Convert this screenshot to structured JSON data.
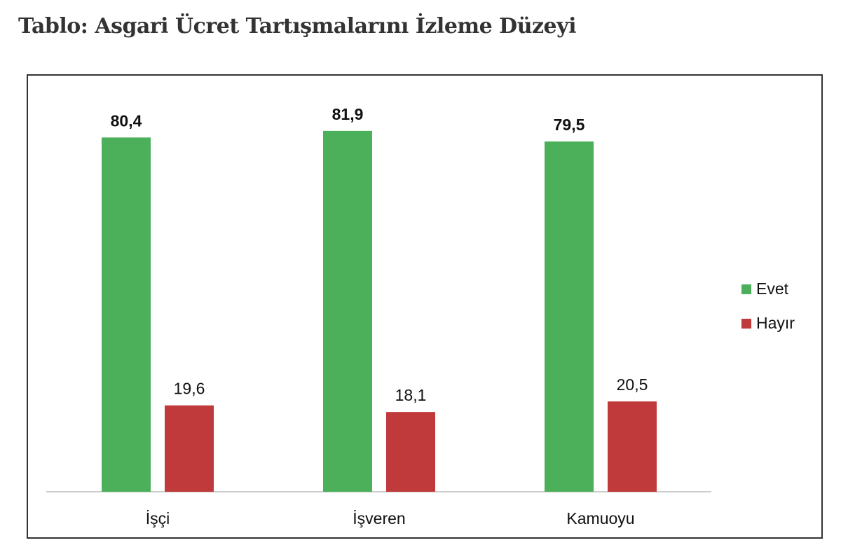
{
  "chart_data": {
    "type": "bar",
    "title": "Tablo: Asgari Ücret Tartışmalarını İzleme Düzeyi",
    "categories": [
      "İşçi",
      "İşveren",
      "Kamuoyu"
    ],
    "series": [
      {
        "name": "Evet",
        "color": "#4caf5a",
        "values": [
          80.4,
          81.9,
          79.5
        ],
        "labels": [
          "80,4",
          "81,9",
          "79,5"
        ],
        "label_bold": true
      },
      {
        "name": "Hayır",
        "color": "#c0393b",
        "values": [
          19.6,
          18.1,
          20.5
        ],
        "labels": [
          "19,6",
          "18,1",
          "20,5"
        ],
        "label_bold": false
      }
    ],
    "xlabel": "",
    "ylabel": "",
    "ylim": [
      0,
      100
    ],
    "grid": false,
    "legend": "right"
  }
}
